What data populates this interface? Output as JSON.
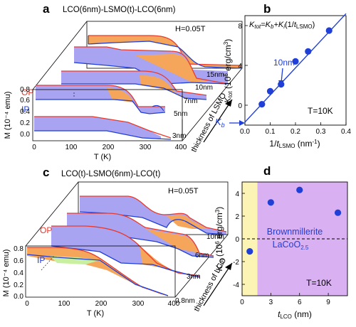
{
  "panels": {
    "a": {
      "letter": "a",
      "title": "LCO(6nm)-LSMO(t)-LCO(6nm)",
      "field": "H=0.05T",
      "ylabel": "M (10⁻⁴ emu)",
      "xlabel": "T (K)",
      "xticks": [
        "0",
        "100",
        "200",
        "300",
        "400"
      ],
      "yticks": [
        "0.0",
        "0.2",
        "0.4",
        "0.6",
        "0.8"
      ],
      "thickness_labels": [
        "3nm",
        "5nm",
        "7nm",
        "10nm",
        "15nm"
      ],
      "depth_axis_label": "thickness of LSMO",
      "op_label": "OP",
      "ip_label": "IP"
    },
    "b": {
      "letter": "b",
      "equation": "K_tot=K_b+K_i(1/t_LSMO)",
      "annotation": "10nm",
      "temperature": "T=10K",
      "kb_label": "K_b",
      "ylabel": "K_tot (10^6 erg/cm^3)",
      "xlabel": "1/t_LSMO (nm^-1)",
      "xticks": [
        "0.0",
        "0.1",
        "0.2",
        "0.3",
        "0.4"
      ],
      "yticks": [
        "0",
        "4",
        "8"
      ]
    },
    "c": {
      "letter": "c",
      "title": "LCO(t)-LSMO(6nm)-LCO(t)",
      "field": "H=0.05T",
      "ylabel": "M (10⁻⁴ emu)",
      "xlabel": "T (K)",
      "xticks": [
        "0",
        "100",
        "200",
        "300",
        "400"
      ],
      "yticks": [
        "0.0",
        "0.2",
        "0.4",
        "0.6",
        "0.8"
      ],
      "thickness_labels": [
        "0.8nm",
        "3nm",
        "6nm",
        "10nm"
      ],
      "depth_axis_label": "thickness of LCO",
      "op_label": "OP",
      "ip_label": "IP"
    },
    "d": {
      "letter": "d",
      "annotation_line1": "Brownmillerite",
      "annotation_line2": "LaCoO",
      "annotation_sub": "2.5",
      "temperature": "T=10K",
      "ylabel": "K_tot (10^6 erg/cm^3)",
      "xlabel": "t_LCO (nm)",
      "xticks": [
        "0",
        "3",
        "6",
        "9"
      ],
      "yticks": [
        "-4",
        "-2",
        "0",
        "2",
        "4"
      ]
    }
  },
  "colors": {
    "op_curve": "#e8392c",
    "ip_curve": "#1f3fd6",
    "fill_orange": "#f5a65b",
    "fill_blue": "#a9a4f2",
    "fill_green": "#c8f0a0",
    "points": "#1f3fd6",
    "region_yellow": "#fbf4b5",
    "region_purple": "#d9b0f2"
  },
  "chart_data": [
    {
      "panel": "b",
      "type": "scatter",
      "title": "",
      "xlabel": "1/t_LSMO (nm^-1)",
      "ylabel": "K_tot (10^6 erg/cm^3)",
      "xlim": [
        0,
        0.4
      ],
      "ylim": [
        -2,
        9
      ],
      "x": [
        0.067,
        0.1,
        0.143,
        0.2,
        0.25,
        0.333
      ],
      "y": [
        0.1,
        1.4,
        2.1,
        4.4,
        5.4,
        7.5
      ],
      "fit_line": {
        "x": [
          0,
          0.4
        ],
        "y": [
          -1.7,
          9.2
        ]
      },
      "grid": false
    },
    {
      "panel": "d",
      "type": "scatter",
      "title": "",
      "xlabel": "t_LCO (nm)",
      "ylabel": "K_tot (10^6 erg/cm^3)",
      "xlim": [
        0,
        11
      ],
      "ylim": [
        -5,
        5
      ],
      "x": [
        0.8,
        3,
        6,
        10
      ],
      "y": [
        -1.1,
        3.2,
        4.3,
        2.3
      ],
      "reference_line_y": 0,
      "regions": [
        {
          "x": [
            0,
            1.6
          ]
        },
        {
          "x": [
            1.6,
            11
          ]
        }
      ],
      "grid": false
    }
  ]
}
